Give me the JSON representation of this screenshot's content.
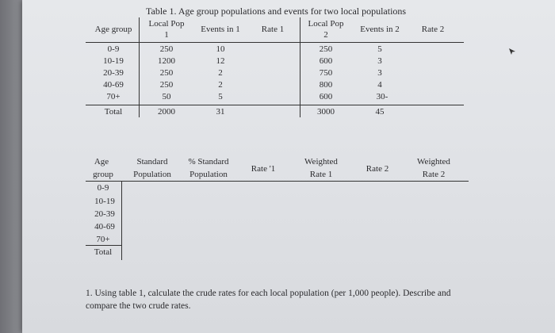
{
  "table1": {
    "title": "Table 1. Age group populations and events for two local populations",
    "headers": {
      "age_group": "Age group",
      "local_pop_1_a": "Local Pop",
      "local_pop_1_b": "1",
      "events_1": "Events in 1",
      "rate_1": "Rate 1",
      "local_pop_2_a": "Local Pop",
      "local_pop_2_b": "2",
      "events_2": "Events in 2",
      "rate_2": "Rate 2"
    },
    "rows": [
      {
        "age": "0-9",
        "pop1": "250",
        "ev1": "10",
        "pop2": "250",
        "ev2": "5"
      },
      {
        "age": "10-19",
        "pop1": "1200",
        "ev1": "12",
        "pop2": "600",
        "ev2": "3"
      },
      {
        "age": "20-39",
        "pop1": "250",
        "ev1": "2",
        "pop2": "750",
        "ev2": "3"
      },
      {
        "age": "40-69",
        "pop1": "250",
        "ev1": "2",
        "pop2": "800",
        "ev2": "4"
      },
      {
        "age": "70+",
        "pop1": "50",
        "ev1": "5",
        "pop2": "600",
        "ev2": "30-"
      },
      {
        "age": "Total",
        "pop1": "2000",
        "ev1": "31",
        "pop2": "3000",
        "ev2": "45"
      }
    ]
  },
  "table2": {
    "headers": {
      "age_a": "Age",
      "age_b": "group",
      "std_pop_a": "Standard",
      "std_pop_b": "Population",
      "pct_std_a": "% Standard",
      "pct_std_b": "Population",
      "rate_1": "Rate '1",
      "weighted_1_a": "Weighted",
      "weighted_1_b": "Rate 1",
      "rate_2": "Rate 2",
      "weighted_2_a": "Weighted",
      "weighted_2_b": "Rate 2"
    },
    "rows": [
      "0-9",
      "10-19",
      "20-39",
      "40-69",
      "70+",
      "Total"
    ]
  },
  "question": "1. Using table 1, calculate the crude rates for each local population (per 1,000 people). Describe and compare the two crude rates."
}
